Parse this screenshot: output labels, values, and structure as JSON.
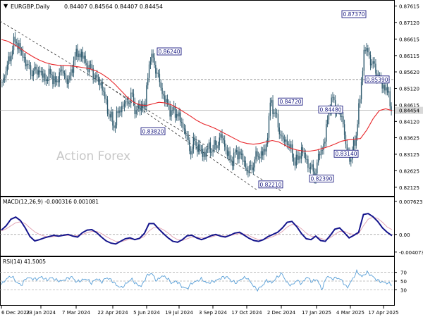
{
  "header": {
    "symbol": "EURGBP,Daily",
    "ohlc": "0.84407 0.84564 0.84407 0.84454"
  },
  "watermark": "Action Forex",
  "colors": {
    "candle": "#2e5a6e",
    "ma": "#e8262a",
    "hline": "#8a8a8a",
    "channel": "#333333",
    "macd": "#14148c",
    "signal": "#e0a0b0",
    "rsi": "#5aa0d8",
    "box_border": "#1a1a80",
    "current_price_bg": "#d8d8d8"
  },
  "chart_data": [
    {
      "type": "candlestick",
      "title": "EURGBP,Daily",
      "x": [
        "6 Dec 2023",
        "23 Jan 2024",
        "7 Mar 2024",
        "22 Apr 2024",
        "5 Jun 2024",
        "19 Jul 2024",
        "3 Sep 2024",
        "17 Oct 2024",
        "2 Dec 2024",
        "17 Jan 2025",
        "4 Mar 2025",
        "17 Apr 2025"
      ],
      "ylim": [
        0.8195,
        0.8767
      ],
      "yticks": [
        "0.87615",
        "0.87120",
        "0.86615",
        "0.86115",
        "0.85620",
        "0.85120",
        "0.84615",
        "0.84120",
        "0.83625",
        "0.83125",
        "0.82625",
        "0.82125"
      ],
      "close_series": [
        0.853,
        0.857,
        0.862,
        0.866,
        0.863,
        0.86,
        0.857,
        0.856,
        0.857,
        0.855,
        0.854,
        0.856,
        0.852,
        0.857,
        0.855,
        0.853,
        0.86,
        0.862,
        0.861,
        0.858,
        0.857,
        0.854,
        0.853,
        0.848,
        0.843,
        0.84,
        0.844,
        0.846,
        0.847,
        0.849,
        0.844,
        0.846,
        0.846,
        0.861,
        0.859,
        0.854,
        0.849,
        0.846,
        0.844,
        0.844,
        0.841,
        0.838,
        0.832,
        0.835,
        0.833,
        0.831,
        0.833,
        0.833,
        0.834,
        0.837,
        0.833,
        0.829,
        0.831,
        0.832,
        0.829,
        0.826,
        0.828,
        0.831,
        0.831,
        0.833,
        0.847,
        0.844,
        0.838,
        0.835,
        0.835,
        0.83,
        0.829,
        0.833,
        0.829,
        0.827,
        0.825,
        0.832,
        0.834,
        0.845,
        0.848,
        0.844,
        0.843,
        0.832,
        0.83,
        0.836,
        0.848,
        0.864,
        0.861,
        0.858,
        0.855,
        0.852,
        0.851,
        0.845
      ],
      "ma_series": [
        0.866,
        0.8655,
        0.8645,
        0.8633,
        0.862,
        0.8608,
        0.8598,
        0.859,
        0.8585,
        0.8582,
        0.8581,
        0.858,
        0.8578,
        0.8575,
        0.8572,
        0.8565,
        0.8555,
        0.8542,
        0.8525,
        0.8505,
        0.8485,
        0.847,
        0.8462,
        0.846,
        0.8465,
        0.847,
        0.8468,
        0.8462,
        0.8452,
        0.844,
        0.8428,
        0.8415,
        0.8405,
        0.8398,
        0.839,
        0.838,
        0.837,
        0.836,
        0.835,
        0.8345,
        0.8343,
        0.8345,
        0.835,
        0.8354,
        0.835,
        0.834,
        0.833,
        0.8325,
        0.8322,
        0.8322,
        0.8325,
        0.833,
        0.8336,
        0.8344,
        0.8352,
        0.8356,
        0.8358,
        0.836,
        0.8386,
        0.842,
        0.8445,
        0.845,
        0.8445
      ],
      "resistance_line": 0.8539,
      "current_price": "0.84454",
      "annotations": [
        {
          "label": "0.87370",
          "value": 0.8737
        },
        {
          "label": "0.86240",
          "value": 0.8624
        },
        {
          "label": "0.85390",
          "value": 0.8539
        },
        {
          "label": "0.84720",
          "value": 0.8472
        },
        {
          "label": "0.84480",
          "value": 0.8448
        },
        {
          "label": "0.83820",
          "value": 0.8382
        },
        {
          "label": "0.83140",
          "value": 0.8314
        },
        {
          "label": "0.82390",
          "value": 0.8239
        },
        {
          "label": "0.82210",
          "value": 0.8221
        }
      ]
    },
    {
      "type": "line",
      "title": "MACD(12,26,9) -0.000316 0.001081",
      "yticks": [
        "0.007623",
        "0.00",
        "-0.004073"
      ],
      "ylim": [
        -0.0041,
        0.0076
      ],
      "series": [
        {
          "values": [
            0.001,
            0.002,
            0.0035,
            0.004,
            0.0032,
            0.0015,
            -0.0005,
            -0.0015,
            -0.0012,
            -0.0008,
            -0.0005,
            -0.0002,
            -0.0004,
            -0.0002,
            0.0,
            -0.0004,
            -0.0006,
            0.0004,
            0.001,
            0.0011,
            0.0004,
            -0.0006,
            -0.0015,
            -0.002,
            -0.0022,
            -0.0016,
            -0.001,
            -0.0008,
            -0.0012,
            -0.0009,
            0.0002,
            0.0025,
            0.0025,
            0.0013,
            0.0002,
            -0.0008,
            -0.0016,
            -0.0018,
            -0.0012,
            -0.0003,
            -0.0002,
            -0.0008,
            -0.0012,
            -0.0008,
            -0.0003,
            0.0,
            -0.0004,
            -0.0006,
            -0.0002,
            0.0003,
            0.0005,
            -0.0002,
            -0.0009,
            -0.0014,
            -0.0016,
            -0.0012,
            -0.0005,
            0.0,
            0.0005,
            0.0015,
            0.0028,
            0.003,
            0.0018,
            0.0002,
            -0.001,
            -0.0012,
            -0.0004,
            -0.0014,
            -0.0016,
            -0.0003,
            0.0012,
            0.0015,
            0.0004,
            -0.0008,
            -0.0002,
            0.0005,
            0.0046,
            0.0048,
            0.0041,
            0.003,
            0.0015,
            0.0005,
            -0.0003
          ]
        },
        {
          "values": [
            0.0008,
            0.0013,
            0.002,
            0.0027,
            0.0029,
            0.0025,
            0.0015,
            0.0006,
            0.0,
            -0.0004,
            -0.0006,
            -0.0005,
            -0.0004,
            -0.0003,
            -0.0002,
            -0.0003,
            -0.0003,
            0.0,
            0.0004,
            0.0007,
            0.0007,
            0.0002,
            -0.0005,
            -0.0011,
            -0.0016,
            -0.0017,
            -0.0014,
            -0.0011,
            -0.0011,
            -0.001,
            -0.0005,
            0.0008,
            0.0016,
            0.0016,
            0.0011,
            0.0003,
            -0.0006,
            -0.0012,
            -0.0014,
            -0.001,
            -0.0006,
            -0.0006,
            -0.0008,
            -0.0008,
            -0.0006,
            -0.0003,
            -0.0003,
            -0.0004,
            -0.0003,
            0.0,
            0.0002,
            0.0001,
            -0.0003,
            -0.0008,
            -0.0012,
            -0.0012,
            -0.0009,
            -0.0005,
            0.0,
            0.0007,
            0.0017,
            0.0023,
            0.0021,
            0.0013,
            0.0003,
            -0.0004,
            -0.0005,
            -0.0009,
            -0.0012,
            -0.0008,
            0.0,
            0.0007,
            0.0007,
            0.0002,
            0.0,
            0.0002,
            0.002,
            0.0035,
            0.004,
            0.0037,
            0.0028,
            0.0017,
            0.0011
          ]
        }
      ]
    },
    {
      "type": "line",
      "title": "RSI(14) 41.5005",
      "yticks": [
        "70",
        "50",
        "30"
      ],
      "ylim": [
        0,
        100
      ],
      "series": [
        {
          "values": [
            42,
            55,
            62,
            48,
            40,
            58,
            56,
            54,
            60,
            52,
            58,
            52,
            50,
            55,
            60,
            48,
            52,
            55,
            45,
            56,
            48,
            58,
            52,
            40,
            35,
            45,
            55,
            42,
            38,
            62,
            68,
            50,
            62,
            58,
            45,
            50,
            38,
            32,
            45,
            50,
            55,
            45,
            48,
            52,
            58,
            60,
            50,
            46,
            56,
            58,
            44,
            30,
            38,
            52,
            46,
            58,
            68,
            46,
            40,
            52,
            44,
            60,
            48,
            55,
            30,
            62,
            55,
            58,
            52,
            34,
            52,
            72,
            60,
            70,
            62,
            52,
            48,
            46,
            42
          ]
        }
      ]
    }
  ]
}
